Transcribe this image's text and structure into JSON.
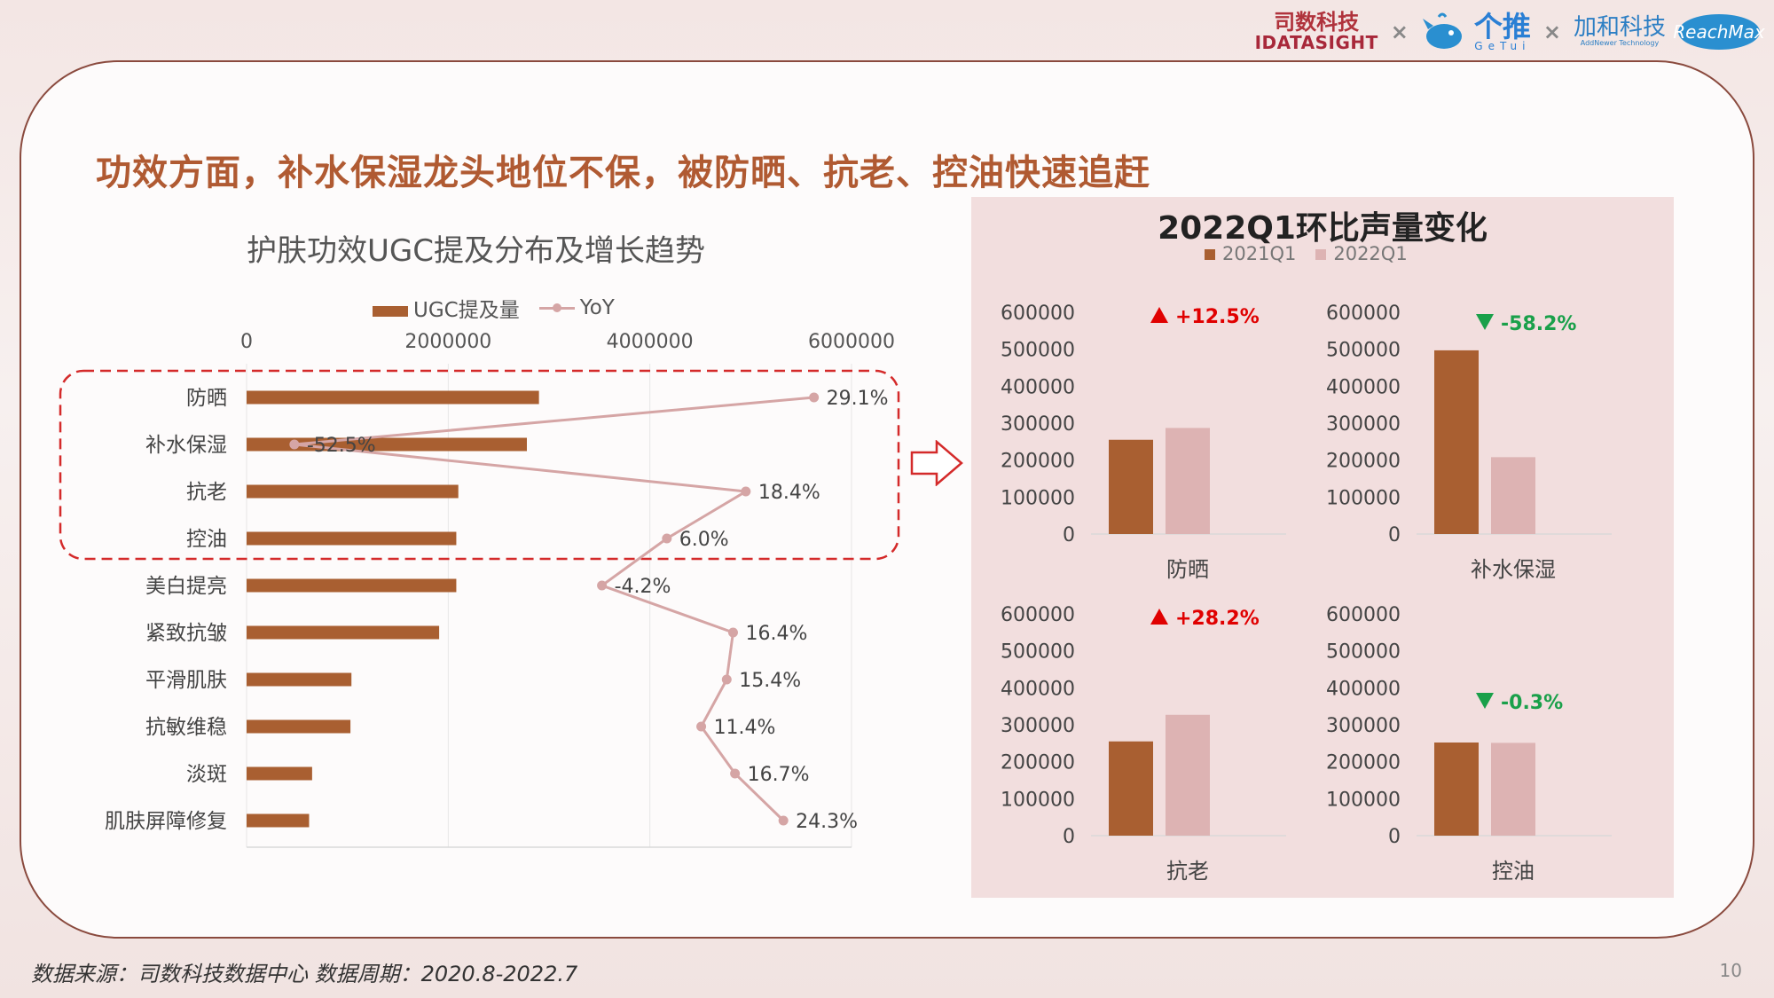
{
  "header": {
    "logo_idatasight_cn": "司数科技",
    "logo_idatasight_en": "IDATASIGHT",
    "logo_getui_cn": "个推",
    "logo_getui_en": "GeTui",
    "logo_jiahe_cn": "加和科技",
    "logo_jiahe_en": "AddNewer Technology",
    "logo_reachmax": "ReachMax",
    "separator": "×"
  },
  "headline": "功效方面，补水保湿龙头地位不保，被防晒、抗老、控油快速追赶",
  "footer": {
    "source": "数据来源：司数科技数据中心    数据周期：2020.8-2022.7",
    "page": "10"
  },
  "colors": {
    "bar": "#a95f31",
    "line": "#d5a5a5",
    "q2021": "#a95f31",
    "q2022": "#ddb3b3",
    "up": "#e00000",
    "down": "#1aa04a",
    "highlight": "#d42a2a"
  },
  "chart_data": [
    {
      "type": "bar",
      "orientation": "horizontal",
      "title": "护肤功效UGC提及分布及增长趋势",
      "categories": [
        "防晒",
        "补水保湿",
        "抗老",
        "控油",
        "美白提亮",
        "紧致抗皱",
        "平滑肌肤",
        "抗敏维稳",
        "淡斑",
        "肌肤屏障修复"
      ],
      "series": [
        {
          "name": "UGC提及量",
          "type": "bar",
          "values": [
            2900000,
            2780000,
            2100000,
            2080000,
            2080000,
            1910000,
            1040000,
            1030000,
            650000,
            620000
          ]
        },
        {
          "name": "YoY",
          "type": "line",
          "values": [
            29.1,
            -52.5,
            18.4,
            6.0,
            -4.2,
            16.4,
            15.4,
            11.4,
            16.7,
            24.3
          ],
          "labels": [
            "29.1%",
            "-52.5%",
            "18.4%",
            "6.0%",
            "-4.2%",
            "16.4%",
            "15.4%",
            "11.4%",
            "16.7%",
            "24.3%"
          ]
        }
      ],
      "xaxis_ticks": [
        "0",
        "2000000",
        "4000000",
        "6000000"
      ],
      "xlim": [
        0,
        6000000
      ],
      "legend": [
        "UGC提及量",
        "YoY"
      ],
      "legend_position": "top",
      "highlighted_categories": [
        "防晒",
        "补水保湿",
        "抗老",
        "控油"
      ]
    },
    {
      "type": "bar",
      "title": "2022Q1环比声量变化",
      "legend": [
        "2021Q1",
        "2022Q1"
      ],
      "legend_position": "top",
      "ylim": [
        0,
        600000
      ],
      "yaxis_ticks": [
        "600000",
        "500000",
        "400000",
        "300000",
        "200000",
        "100000",
        "0"
      ],
      "panels": [
        {
          "category": "防晒",
          "values": [
            255000,
            287000
          ],
          "change": "+12.5%",
          "direction": "up"
        },
        {
          "category": "补水保湿",
          "values": [
            497000,
            208000
          ],
          "change": "-58.2%",
          "direction": "down"
        },
        {
          "category": "抗老",
          "values": [
            255000,
            327000
          ],
          "change": "+28.2%",
          "direction": "up"
        },
        {
          "category": "控油",
          "values": [
            252000,
            251000
          ],
          "change": "-0.3%",
          "direction": "down"
        }
      ]
    }
  ]
}
